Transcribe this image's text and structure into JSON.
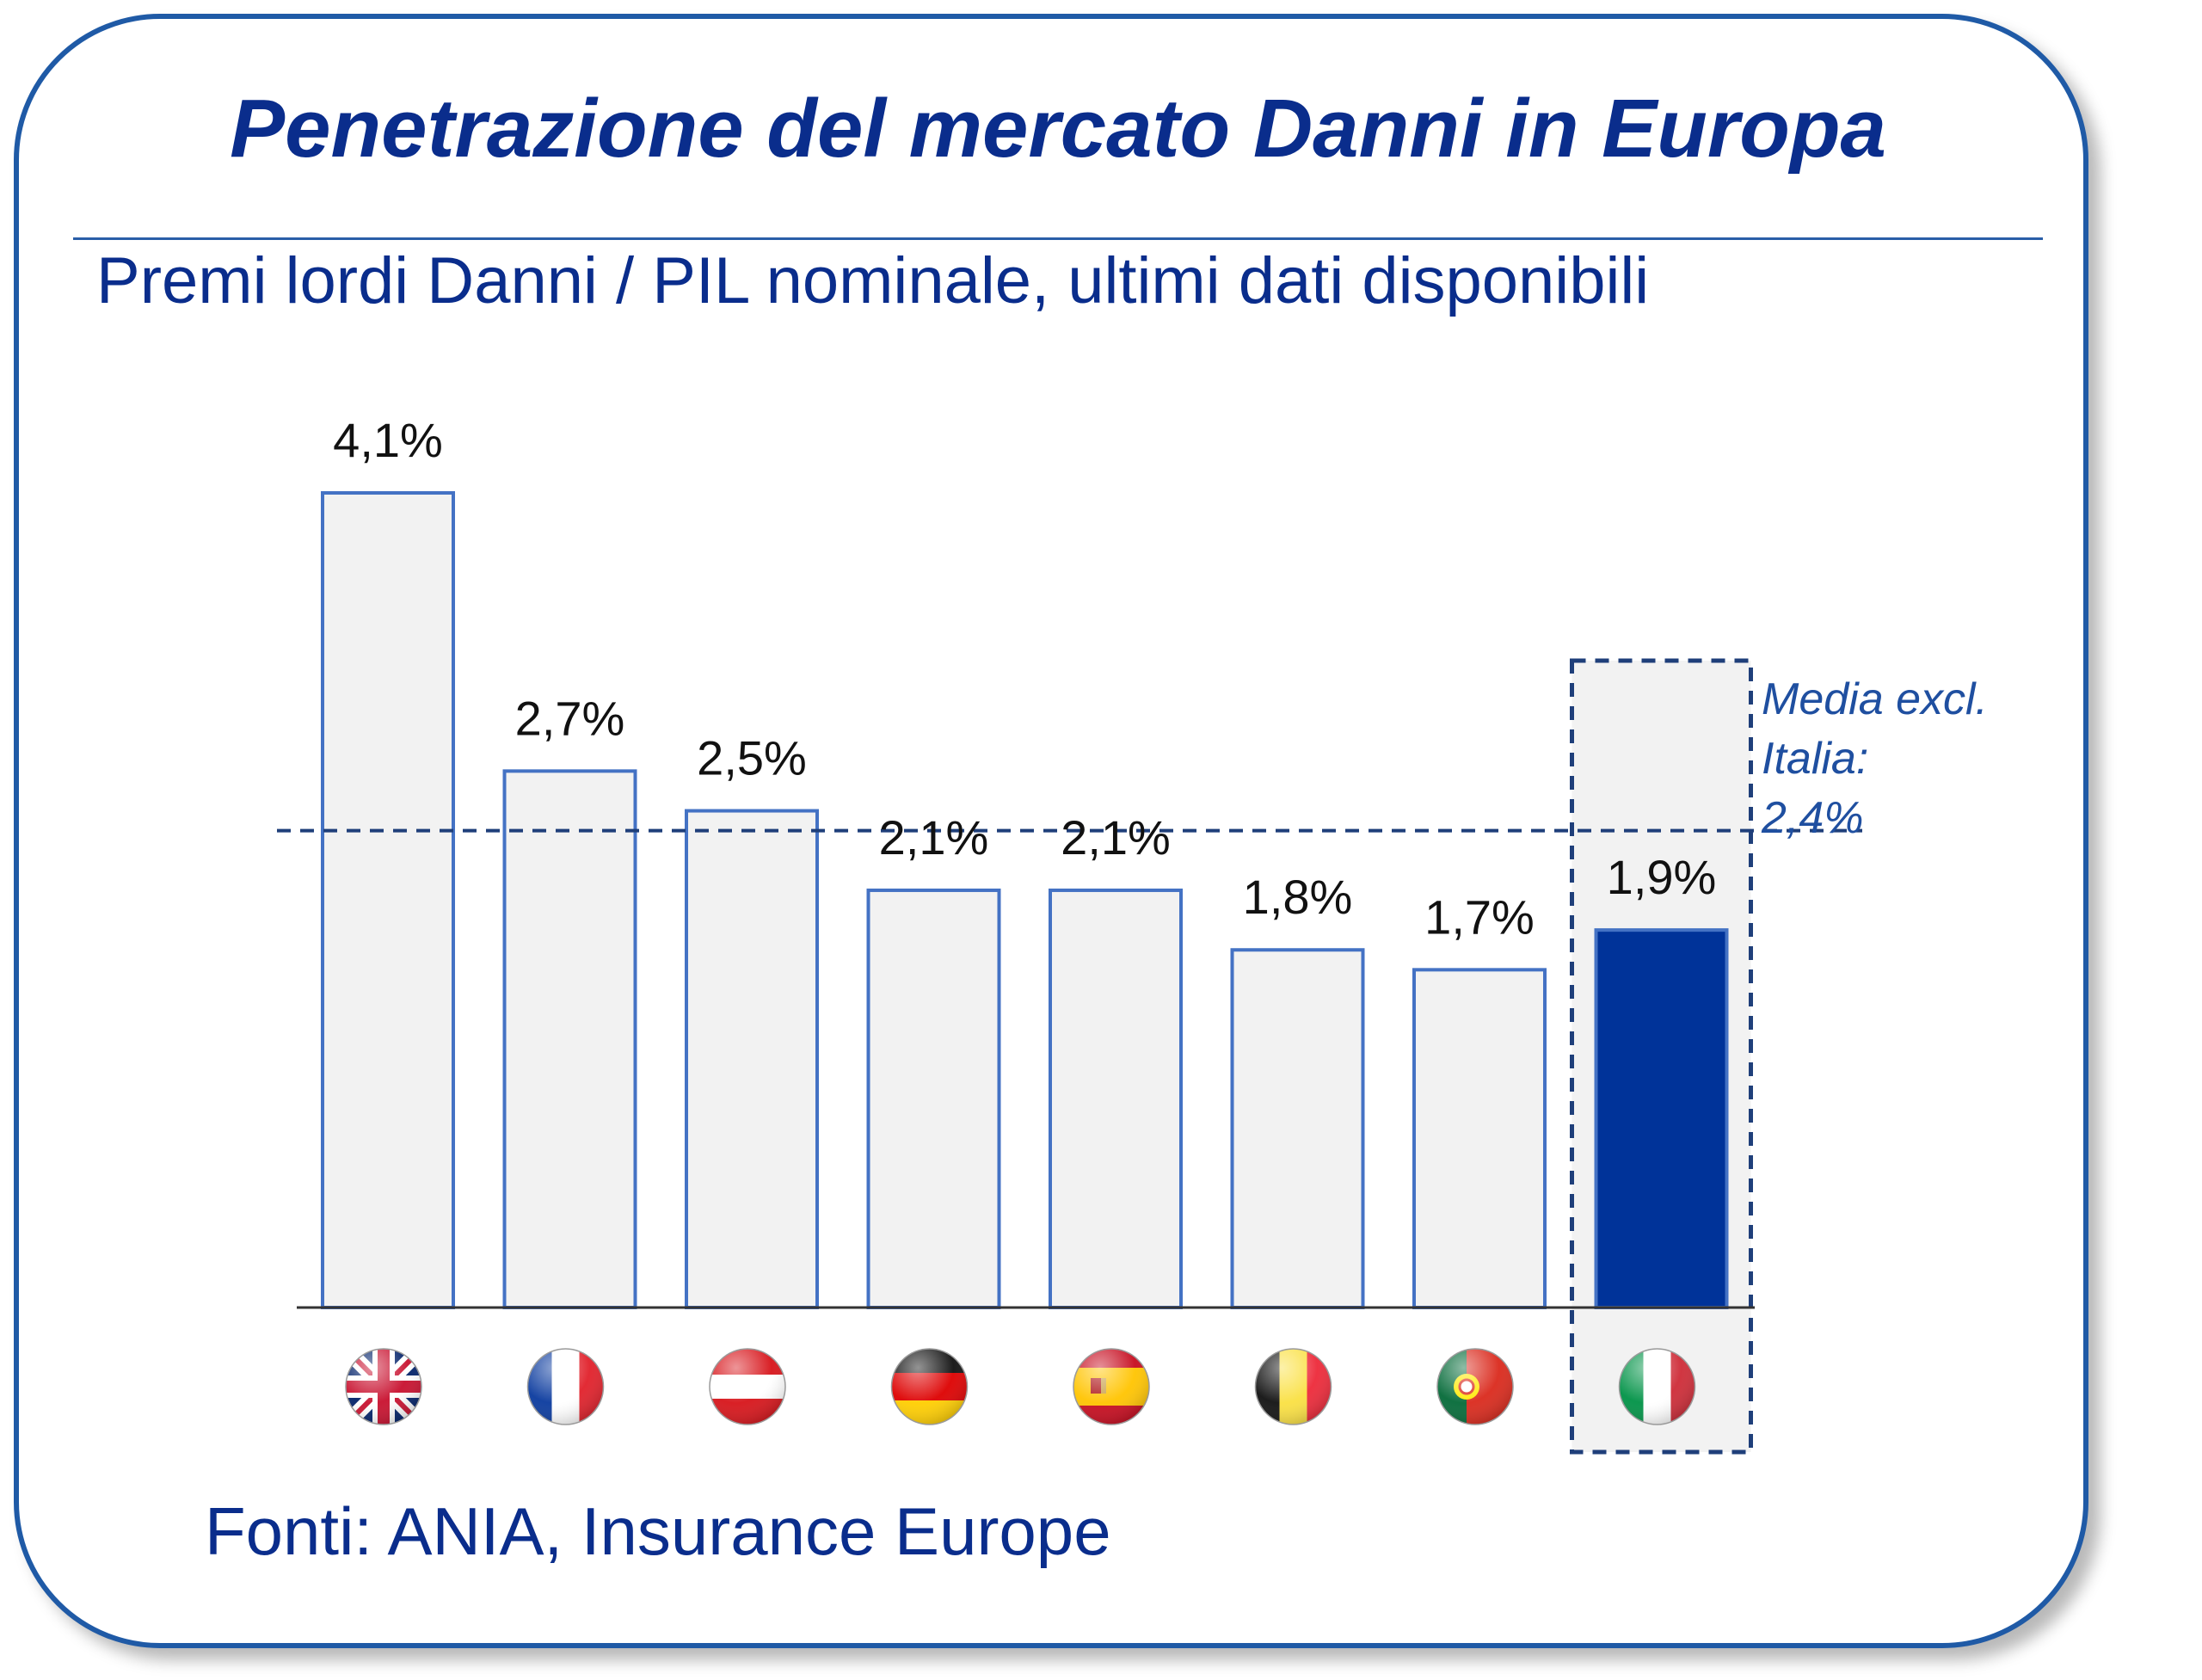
{
  "title": "Penetrazione del mercato Danni in Europa",
  "subtitle": "Premi lordi Danni / PIL nominale, ultimi dati disponibili",
  "footer": "Fonti: ANIA, Insurance Europe",
  "colors": {
    "accent": "#0a2d8c",
    "bar_fill": "#f2f2f2",
    "bar_border": "#4472c4",
    "highlight_fill": "#003399",
    "avg_line": "#1f3f7a"
  },
  "chart_data": {
    "type": "bar",
    "categories": [
      "uk-flag-icon",
      "france-flag-icon",
      "austria-flag-icon",
      "germany-flag-icon",
      "spain-flag-icon",
      "belgium-flag-icon",
      "portugal-flag-icon",
      "italy-flag-icon"
    ],
    "values": [
      4.1,
      2.7,
      2.5,
      2.1,
      2.1,
      1.8,
      1.7,
      1.9
    ],
    "data_labels": [
      "4,1%",
      "2,7%",
      "2,5%",
      "2,1%",
      "2,1%",
      "1,8%",
      "1,7%",
      "1,9%"
    ],
    "highlight_index": 7,
    "reference_line": {
      "value": 2.4,
      "label_lines": [
        "Media excl.",
        "Italia:",
        "2,4%"
      ]
    },
    "ylim": [
      0,
      4.1
    ],
    "grid": false,
    "legend": "none"
  }
}
